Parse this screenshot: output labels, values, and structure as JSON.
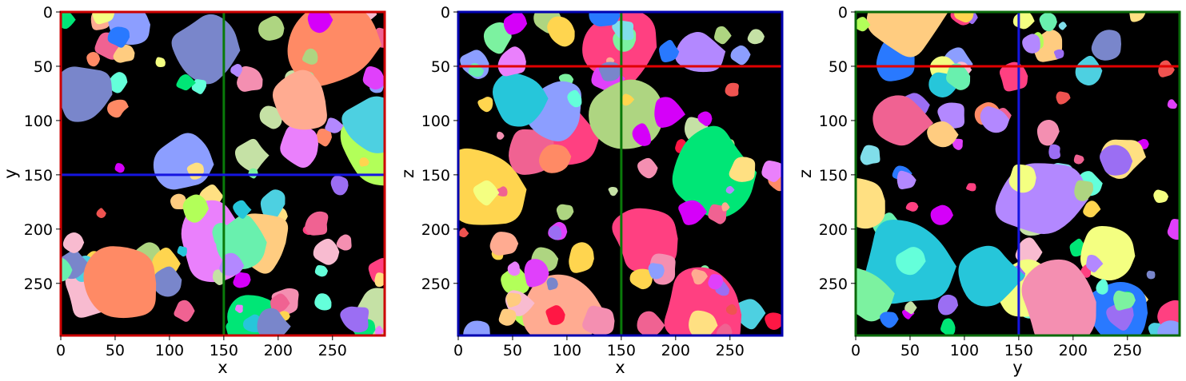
{
  "figure": {
    "panels": [
      {
        "id": "xy",
        "frame_color": "#cc0000",
        "xlabel": "x",
        "ylabel": "y",
        "xticks": [
          "0",
          "50",
          "100",
          "150",
          "200",
          "250"
        ],
        "yticks": [
          "0",
          "50",
          "100",
          "150",
          "200",
          "250"
        ],
        "crosshair": [
          {
            "orientation": "vertical",
            "value": 150,
            "color": "#0a7a0a"
          },
          {
            "orientation": "horizontal",
            "value": 150,
            "color": "#1515e0"
          }
        ]
      },
      {
        "id": "xz",
        "frame_color": "#0000b0",
        "xlabel": "x",
        "ylabel": "z",
        "xticks": [
          "0",
          "50",
          "100",
          "150",
          "200",
          "250"
        ],
        "yticks": [
          "0",
          "50",
          "100",
          "150",
          "200",
          "250"
        ],
        "crosshair": [
          {
            "orientation": "vertical",
            "value": 150,
            "color": "#0a7a0a"
          },
          {
            "orientation": "horizontal",
            "value": 50,
            "color": "#e00000"
          }
        ]
      },
      {
        "id": "yz",
        "frame_color": "#0a6a0a",
        "xlabel": "y",
        "ylabel": "z",
        "xticks": [
          "0",
          "50",
          "100",
          "150",
          "200",
          "250"
        ],
        "yticks": [
          "0",
          "50",
          "100",
          "150",
          "200",
          "250"
        ],
        "crosshair": [
          {
            "orientation": "vertical",
            "value": 150,
            "color": "#1515e0"
          },
          {
            "orientation": "horizontal",
            "value": 50,
            "color": "#e00000"
          }
        ]
      }
    ]
  }
}
